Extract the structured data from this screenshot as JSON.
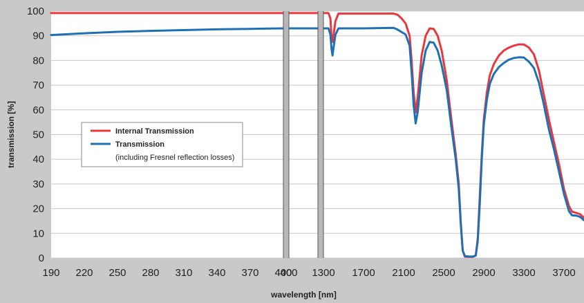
{
  "chart_data": {
    "type": "line",
    "xlabel": "wavelength [nm]",
    "ylabel": "transmission [%]",
    "ylim": [
      0,
      100
    ],
    "y_ticks": [
      "0",
      "10",
      "20",
      "30",
      "40",
      "50",
      "60",
      "70",
      "80",
      "90",
      "100"
    ],
    "grid": "horizontal",
    "legend_position": "left-center",
    "axis_break_style": "double gray vertical bars",
    "x_segments": [
      {
        "range": [
          190,
          400
        ],
        "ticks": [
          "190",
          "220",
          "250",
          "280",
          "310",
          "340",
          "370",
          "400"
        ]
      },
      {
        "range": [
          400,
          410
        ],
        "ticks": [
          "400"
        ]
      },
      {
        "range": [
          1300,
          3900
        ],
        "ticks": [
          "1300",
          "1700",
          "2100",
          "2500",
          "2900",
          "3300",
          "3700"
        ]
      }
    ],
    "legend": {
      "items": [
        {
          "label": "Internal Transmission",
          "color": "#e8383d",
          "bold": true
        },
        {
          "label": "Transmission",
          "color": "#1f6fb5",
          "bold": true
        },
        {
          "label": "(including Fresnel reflection losses)",
          "color": "",
          "bold": false
        }
      ]
    },
    "series": [
      {
        "name": "Internal Transmission",
        "color": "#e8383d",
        "points": [
          [
            190,
            99.2
          ],
          [
            220,
            99.2
          ],
          [
            250,
            99.2
          ],
          [
            280,
            99.2
          ],
          [
            310,
            99.2
          ],
          [
            340,
            99.2
          ],
          [
            370,
            99.2
          ],
          [
            400,
            99.2
          ],
          [
            410,
            99.2
          ],
          [
            1300,
            99.2
          ],
          [
            1350,
            99.2
          ],
          [
            1370,
            97
          ],
          [
            1380,
            90
          ],
          [
            1390,
            87.5
          ],
          [
            1400,
            90
          ],
          [
            1420,
            96
          ],
          [
            1450,
            99
          ],
          [
            1700,
            99
          ],
          [
            2000,
            99
          ],
          [
            2040,
            98.5
          ],
          [
            2080,
            97
          ],
          [
            2120,
            95
          ],
          [
            2160,
            90
          ],
          [
            2180,
            80
          ],
          [
            2200,
            67
          ],
          [
            2220,
            59
          ],
          [
            2240,
            65
          ],
          [
            2280,
            82
          ],
          [
            2320,
            90
          ],
          [
            2360,
            93
          ],
          [
            2400,
            92.8
          ],
          [
            2440,
            90
          ],
          [
            2480,
            84
          ],
          [
            2530,
            72
          ],
          [
            2580,
            55
          ],
          [
            2620,
            42
          ],
          [
            2650,
            30
          ],
          [
            2670,
            15
          ],
          [
            2690,
            3
          ],
          [
            2710,
            0.6
          ],
          [
            2750,
            0.5
          ],
          [
            2790,
            0.5
          ],
          [
            2820,
            1
          ],
          [
            2840,
            8
          ],
          [
            2860,
            25
          ],
          [
            2880,
            42
          ],
          [
            2900,
            56
          ],
          [
            2930,
            67
          ],
          [
            2960,
            74
          ],
          [
            3000,
            78.5
          ],
          [
            3050,
            82
          ],
          [
            3100,
            84
          ],
          [
            3150,
            85.2
          ],
          [
            3200,
            86
          ],
          [
            3250,
            86.5
          ],
          [
            3300,
            86.5
          ],
          [
            3350,
            85.2
          ],
          [
            3400,
            82.5
          ],
          [
            3450,
            76
          ],
          [
            3500,
            66
          ],
          [
            3550,
            56
          ],
          [
            3600,
            47
          ],
          [
            3650,
            38
          ],
          [
            3700,
            28
          ],
          [
            3750,
            21
          ],
          [
            3780,
            18.8
          ],
          [
            3820,
            18.3
          ],
          [
            3860,
            17.8
          ],
          [
            3900,
            16.3
          ]
        ]
      },
      {
        "name": "Transmission",
        "color": "#1f6fb5",
        "points": [
          [
            190,
            90.3
          ],
          [
            220,
            91
          ],
          [
            250,
            91.6
          ],
          [
            280,
            92
          ],
          [
            310,
            92.3
          ],
          [
            340,
            92.6
          ],
          [
            370,
            92.8
          ],
          [
            400,
            93
          ],
          [
            410,
            93
          ],
          [
            1300,
            93
          ],
          [
            1350,
            93
          ],
          [
            1370,
            90.5
          ],
          [
            1380,
            85
          ],
          [
            1390,
            82
          ],
          [
            1400,
            85
          ],
          [
            1420,
            90.5
          ],
          [
            1450,
            93
          ],
          [
            1700,
            93
          ],
          [
            2000,
            93.2
          ],
          [
            2040,
            92.5
          ],
          [
            2080,
            91.5
          ],
          [
            2120,
            90.5
          ],
          [
            2160,
            86
          ],
          [
            2180,
            75
          ],
          [
            2200,
            62
          ],
          [
            2220,
            54.5
          ],
          [
            2240,
            59
          ],
          [
            2280,
            75
          ],
          [
            2320,
            84
          ],
          [
            2360,
            87.5
          ],
          [
            2400,
            87.2
          ],
          [
            2440,
            84
          ],
          [
            2480,
            78
          ],
          [
            2530,
            68
          ],
          [
            2580,
            52
          ],
          [
            2620,
            40
          ],
          [
            2650,
            28
          ],
          [
            2670,
            14
          ],
          [
            2690,
            3
          ],
          [
            2710,
            0.8
          ],
          [
            2750,
            0.6
          ],
          [
            2790,
            0.6
          ],
          [
            2820,
            1
          ],
          [
            2840,
            7
          ],
          [
            2860,
            22
          ],
          [
            2880,
            40
          ],
          [
            2900,
            54
          ],
          [
            2930,
            64
          ],
          [
            2960,
            70.5
          ],
          [
            3000,
            74.5
          ],
          [
            3050,
            77.3
          ],
          [
            3100,
            79
          ],
          [
            3150,
            80.3
          ],
          [
            3200,
            81
          ],
          [
            3250,
            81.3
          ],
          [
            3300,
            81.2
          ],
          [
            3350,
            79.5
          ],
          [
            3400,
            77
          ],
          [
            3450,
            71
          ],
          [
            3500,
            62
          ],
          [
            3550,
            52
          ],
          [
            3600,
            44
          ],
          [
            3650,
            35
          ],
          [
            3700,
            26
          ],
          [
            3750,
            19
          ],
          [
            3780,
            17.3
          ],
          [
            3820,
            17.2
          ],
          [
            3860,
            16.7
          ],
          [
            3900,
            15.3
          ]
        ]
      }
    ]
  }
}
